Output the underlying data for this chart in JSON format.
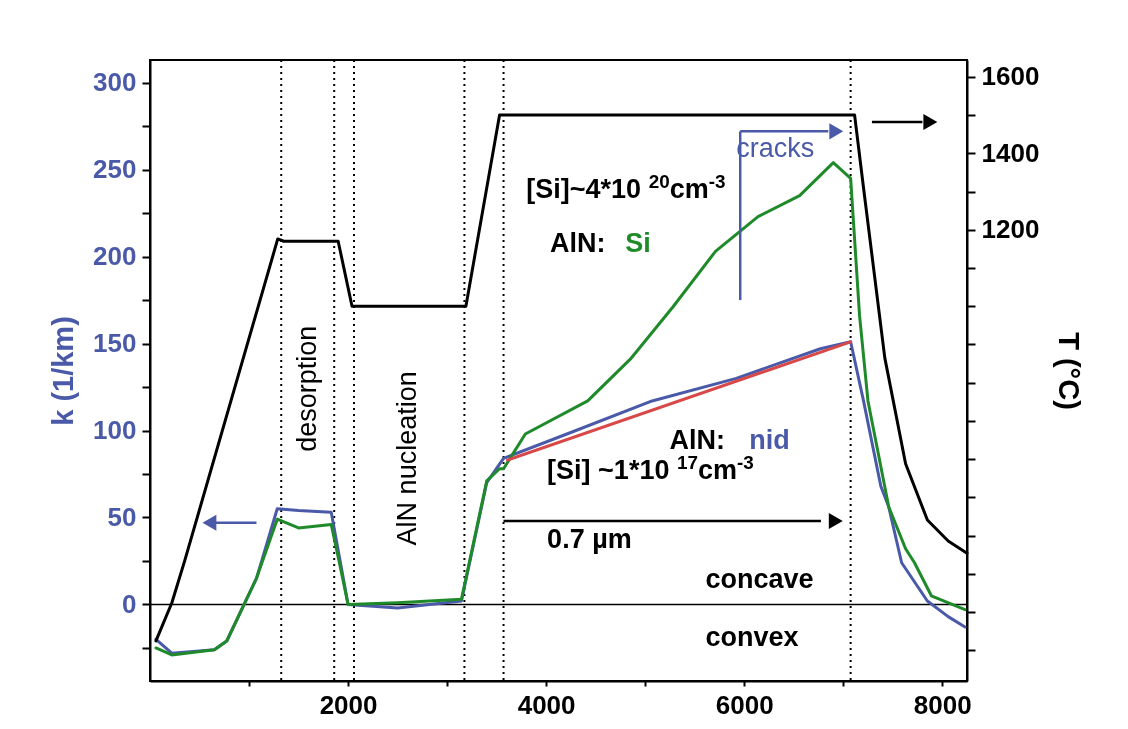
{
  "chart_data": {
    "type": "line",
    "ylabel": "k (1/km)",
    "y2label": "T (°C)",
    "xlim": [
      0,
      8250
    ],
    "ylim": [
      -44,
      313
    ],
    "y2lim": [
      20,
      1644
    ],
    "xticks": [
      {
        "value": 1000,
        "label": null
      },
      2000,
      {
        "value": 3000,
        "label": null
      },
      4000,
      {
        "value": 5000,
        "label": null
      },
      6000,
      {
        "value": 7000,
        "label": null
      },
      8000
    ],
    "yticks": [
      {
        "value": -25,
        "label": null
      },
      0,
      {
        "value": 25,
        "label": null
      },
      50,
      {
        "value": 75,
        "label": null
      },
      100,
      {
        "value": 125,
        "label": null
      },
      150,
      {
        "value": 175,
        "label": null
      },
      200,
      {
        "value": 225,
        "label": null
      },
      250,
      {
        "value": 275,
        "label": null
      },
      300
    ],
    "y2ticks": [
      {
        "value": 100,
        "label": null
      },
      {
        "value": 200,
        "label": null
      },
      {
        "value": 300,
        "label": null
      },
      {
        "value": 400,
        "label": null
      },
      {
        "value": 500,
        "label": null
      },
      {
        "value": 600,
        "label": null
      },
      {
        "value": 700,
        "label": null
      },
      {
        "value": 800,
        "label": null
      },
      {
        "value": 900,
        "label": null
      },
      {
        "value": 1000,
        "label": null
      },
      {
        "value": 1100,
        "label": null
      },
      1200,
      {
        "value": 1300,
        "label": null
      },
      1400,
      {
        "value": 1500,
        "label": null
      },
      1600
    ],
    "grid": false,
    "series": [
      {
        "color": "#000000",
        "axis": "y2",
        "x": [
          60,
          220,
          350,
          1290,
          1350,
          1900,
          2040,
          3190,
          3530,
          7115,
          7205,
          7420,
          7630,
          7850,
          8060,
          8250
        ],
        "values": [
          125,
          224,
          334,
          1176,
          1170,
          1170,
          1000,
          1000,
          1500,
          1500,
          1310,
          865,
          588,
          441,
          386,
          354
        ]
      },
      {
        "name": "nid",
        "color": "#4a5aa8",
        "x": [
          60,
          220,
          650,
          775,
          1075,
          1285,
          1500,
          1830,
          1920,
          2000,
          2500,
          3145,
          3400,
          3570,
          4210,
          5070,
          5920,
          6770,
          7075,
          7205,
          7380,
          7460,
          7590,
          7850,
          8060,
          8230
        ],
        "values": [
          -20,
          -28,
          -26,
          -21,
          15,
          55,
          54,
          53,
          25,
          0,
          -2,
          2,
          70,
          84,
          98,
          117,
          130,
          147,
          151,
          117,
          68,
          56,
          24,
          2,
          -7,
          -13
        ]
      },
      {
        "name": "Si",
        "color": "#1f8a2a",
        "x": [
          60,
          220,
          650,
          775,
          1075,
          1285,
          1500,
          1830,
          1920,
          2000,
          2500,
          3145,
          3400,
          3530,
          3570,
          3790,
          4420,
          4850,
          5280,
          5710,
          6140,
          6560,
          6900,
          7075,
          7165,
          7250,
          7460,
          7630,
          7720,
          7890,
          8230
        ],
        "values": [
          -25,
          -29,
          -26,
          -21,
          15,
          49,
          44,
          46,
          22,
          0,
          1,
          3,
          71,
          78,
          78,
          98,
          117,
          141,
          171,
          203,
          223,
          235,
          254,
          245,
          166,
          117,
          56,
          32,
          24,
          5,
          -3
        ]
      },
      {
        "color": "#d84848",
        "x": [
          3610,
          7075
        ],
        "values": [
          83,
          151
        ]
      }
    ],
    "ref_lines": [
      {
        "axis": "x",
        "value": 1325,
        "line_style": "dotted"
      },
      {
        "axis": "x",
        "value": 1860,
        "line_style": "dotted"
      },
      {
        "axis": "x",
        "value": 2060,
        "line_style": "dotted"
      },
      {
        "axis": "x",
        "value": 3175,
        "line_style": "dotted"
      },
      {
        "axis": "x",
        "value": 3570,
        "line_style": "dotted"
      },
      {
        "axis": "x",
        "value": 7075,
        "line_style": "dotted"
      },
      {
        "axis": "y",
        "value": 0,
        "line_style": "solid"
      }
    ],
    "annotations": [
      "desorption",
      "AlN nucleation",
      "[Si]~4*10 $^{20}$cm$^{-3}$",
      "AlN:",
      "AlN:",
      "[Si] ~1*10 $^{17}$cm$^{-3}$",
      "0.7 µm",
      "concave",
      "convex",
      "cracks"
    ]
  }
}
